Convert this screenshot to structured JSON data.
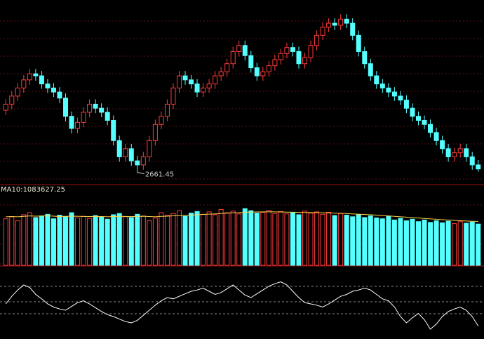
{
  "chart_data": [
    {
      "type": "candlestick",
      "low_label": "2661.45",
      "rise_color": "#ff3c3c",
      "fall_color": "#54ffff",
      "ylim": [
        2640,
        3070
      ],
      "ohlc": [
        [
          2815,
          2842,
          2803,
          2830
        ],
        [
          2830,
          2862,
          2818,
          2850
        ],
        [
          2850,
          2882,
          2838,
          2870
        ],
        [
          2870,
          2902,
          2858,
          2890
        ],
        [
          2890,
          2917,
          2878,
          2905
        ],
        [
          2905,
          2917,
          2888,
          2900
        ],
        [
          2900,
          2912,
          2868,
          2880
        ],
        [
          2880,
          2892,
          2858,
          2870
        ],
        [
          2870,
          2882,
          2848,
          2860
        ],
        [
          2860,
          2872,
          2833,
          2845
        ],
        [
          2845,
          2857,
          2788,
          2800
        ],
        [
          2800,
          2812,
          2758,
          2770
        ],
        [
          2770,
          2797,
          2758,
          2785
        ],
        [
          2785,
          2822,
          2773,
          2810
        ],
        [
          2810,
          2842,
          2798,
          2830
        ],
        [
          2830,
          2842,
          2808,
          2820
        ],
        [
          2820,
          2832,
          2798,
          2810
        ],
        [
          2810,
          2822,
          2778,
          2790
        ],
        [
          2790,
          2802,
          2728,
          2740
        ],
        [
          2740,
          2752,
          2688,
          2700
        ],
        [
          2700,
          2732,
          2688,
          2720
        ],
        [
          2720,
          2732,
          2678,
          2690
        ],
        [
          2690,
          2702,
          2661.45,
          2680
        ],
        [
          2680,
          2712,
          2668,
          2700
        ],
        [
          2700,
          2752,
          2688,
          2740
        ],
        [
          2740,
          2792,
          2728,
          2780
        ],
        [
          2780,
          2812,
          2768,
          2800
        ],
        [
          2800,
          2842,
          2788,
          2830
        ],
        [
          2830,
          2882,
          2818,
          2870
        ],
        [
          2870,
          2912,
          2858,
          2900
        ],
        [
          2900,
          2912,
          2878,
          2890
        ],
        [
          2890,
          2902,
          2868,
          2880
        ],
        [
          2880,
          2892,
          2848,
          2860
        ],
        [
          2860,
          2882,
          2848,
          2870
        ],
        [
          2870,
          2892,
          2858,
          2880
        ],
        [
          2880,
          2912,
          2868,
          2900
        ],
        [
          2900,
          2922,
          2888,
          2910
        ],
        [
          2910,
          2942,
          2898,
          2930
        ],
        [
          2930,
          2972,
          2918,
          2960
        ],
        [
          2960,
          2987,
          2948,
          2975
        ],
        [
          2975,
          2987,
          2938,
          2950
        ],
        [
          2950,
          2962,
          2908,
          2920
        ],
        [
          2920,
          2932,
          2888,
          2900
        ],
        [
          2900,
          2922,
          2888,
          2910
        ],
        [
          2910,
          2937,
          2898,
          2925
        ],
        [
          2925,
          2952,
          2913,
          2940
        ],
        [
          2940,
          2967,
          2928,
          2955
        ],
        [
          2955,
          2982,
          2943,
          2970
        ],
        [
          2970,
          2982,
          2948,
          2960
        ],
        [
          2960,
          2972,
          2918,
          2930
        ],
        [
          2930,
          2957,
          2918,
          2945
        ],
        [
          2945,
          2987,
          2933,
          2975
        ],
        [
          2975,
          3012,
          2963,
          3000
        ],
        [
          3000,
          3032,
          2988,
          3020
        ],
        [
          3020,
          3042,
          3008,
          3030
        ],
        [
          3030,
          3042,
          3013,
          3025
        ],
        [
          3025,
          3052,
          3013,
          3040
        ],
        [
          3040,
          3052,
          3018,
          3030
        ],
        [
          3030,
          3042,
          2988,
          3000
        ],
        [
          3000,
          3012,
          2948,
          2960
        ],
        [
          2960,
          2972,
          2918,
          2930
        ],
        [
          2930,
          2942,
          2888,
          2900
        ],
        [
          2900,
          2912,
          2868,
          2880
        ],
        [
          2880,
          2892,
          2858,
          2870
        ],
        [
          2870,
          2882,
          2848,
          2860
        ],
        [
          2860,
          2872,
          2838,
          2850
        ],
        [
          2850,
          2862,
          2828,
          2840
        ],
        [
          2840,
          2852,
          2808,
          2820
        ],
        [
          2820,
          2832,
          2788,
          2800
        ],
        [
          2800,
          2812,
          2778,
          2790
        ],
        [
          2790,
          2802,
          2768,
          2780
        ],
        [
          2780,
          2792,
          2748,
          2760
        ],
        [
          2760,
          2772,
          2728,
          2740
        ],
        [
          2740,
          2752,
          2708,
          2720
        ],
        [
          2720,
          2732,
          2688,
          2700
        ],
        [
          2700,
          2722,
          2688,
          2710
        ],
        [
          2710,
          2732,
          2698,
          2720
        ],
        [
          2720,
          2732,
          2688,
          2700
        ],
        [
          2700,
          2712,
          2668,
          2680
        ],
        [
          2680,
          2692,
          2663,
          2670
        ]
      ]
    },
    {
      "type": "bar",
      "ma_label": "MA10:1083627.25",
      "ma_color": "#ffd24a",
      "ylim": [
        0,
        1700000
      ],
      "values": [
        1150000,
        1200000,
        1100000,
        1250000,
        1300000,
        1180000,
        1220000,
        1260000,
        1150000,
        1240000,
        1200000,
        1300000,
        1170000,
        1210000,
        1160000,
        1230000,
        1190000,
        1140000,
        1250000,
        1280000,
        1200000,
        1180000,
        1260000,
        1220000,
        1100000,
        1170000,
        1300000,
        1240000,
        1280000,
        1350000,
        1210000,
        1290000,
        1330000,
        1260000,
        1320000,
        1250000,
        1380000,
        1300000,
        1340000,
        1270000,
        1400000,
        1350000,
        1290000,
        1310000,
        1360000,
        1280000,
        1330000,
        1270000,
        1300000,
        1250000,
        1340000,
        1290000,
        1320000,
        1260000,
        1310000,
        1230000,
        1280000,
        1240000,
        1200000,
        1260000,
        1180000,
        1220000,
        1170000,
        1150000,
        1210000,
        1120000,
        1160000,
        1100000,
        1140000,
        1080000,
        1120000,
        1060000,
        1100000,
        1050000,
        1090000,
        1030000,
        1080000,
        1040000,
        1070000,
        1020000
      ],
      "ma10": [
        1200000,
        1205000,
        1200000,
        1210000,
        1220000,
        1215000,
        1218000,
        1222000,
        1215000,
        1205000,
        1210000,
        1215000,
        1212000,
        1208000,
        1205000,
        1203000,
        1206000,
        1200000,
        1205000,
        1210000,
        1208000,
        1204000,
        1209000,
        1212000,
        1205000,
        1200000,
        1210000,
        1215000,
        1222000,
        1230000,
        1235000,
        1240000,
        1250000,
        1258000,
        1265000,
        1270000,
        1280000,
        1290000,
        1298000,
        1300000,
        1310000,
        1315000,
        1318000,
        1320000,
        1322000,
        1320000,
        1318000,
        1315000,
        1312000,
        1308000,
        1305000,
        1303000,
        1300000,
        1298000,
        1295000,
        1290000,
        1285000,
        1278000,
        1270000,
        1262000,
        1255000,
        1248000,
        1240000,
        1230000,
        1220000,
        1210000,
        1200000,
        1190000,
        1178000,
        1168000,
        1158000,
        1148000,
        1138000,
        1128000,
        1118000,
        1110000,
        1102000,
        1095000,
        1089000,
        1083627.25
      ]
    },
    {
      "type": "line",
      "color": "#ffffff",
      "ylim": [
        0,
        100
      ],
      "values": [
        50,
        62,
        72,
        80,
        76,
        65,
        58,
        50,
        45,
        42,
        40,
        46,
        52,
        55,
        50,
        44,
        38,
        33,
        30,
        26,
        22,
        20,
        24,
        32,
        40,
        48,
        55,
        60,
        58,
        62,
        66,
        70,
        72,
        75,
        70,
        65,
        68,
        74,
        80,
        72,
        64,
        60,
        66,
        72,
        78,
        82,
        85,
        80,
        70,
        60,
        52,
        50,
        48,
        45,
        50,
        56,
        62,
        65,
        70,
        72,
        75,
        72,
        65,
        58,
        55,
        45,
        30,
        20,
        28,
        35,
        25,
        10,
        18,
        30,
        38,
        42,
        45,
        40,
        30,
        15
      ]
    }
  ]
}
